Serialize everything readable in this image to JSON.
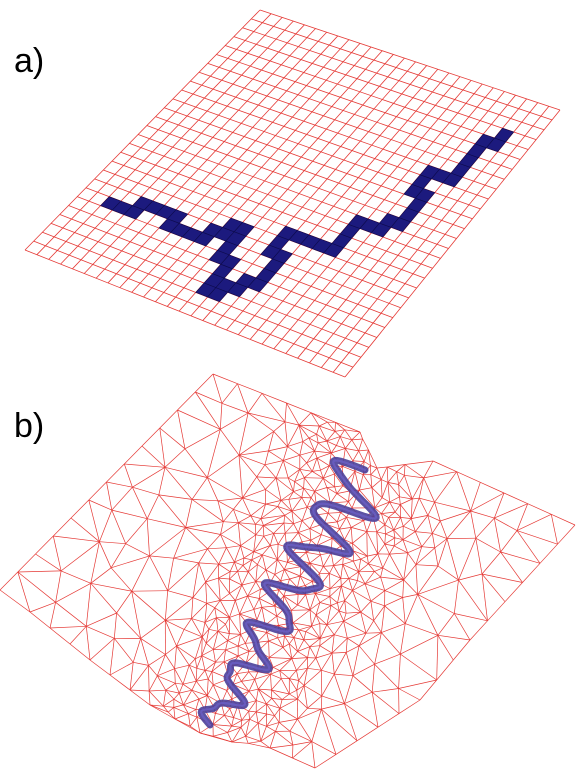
{
  "panels": [
    {
      "label": "a)",
      "kind": "structured-grid",
      "grid_columns": 27,
      "grid_rows": 27,
      "highlighted_cells": [
        [
          2,
          20
        ],
        [
          3,
          20
        ],
        [
          4,
          20
        ],
        [
          4,
          19
        ],
        [
          5,
          19
        ],
        [
          6,
          19
        ],
        [
          7,
          19
        ],
        [
          7,
          20
        ],
        [
          8,
          20
        ],
        [
          9,
          20
        ],
        [
          10,
          20
        ],
        [
          10,
          19
        ],
        [
          11,
          19
        ],
        [
          11,
          18
        ],
        [
          12,
          18
        ],
        [
          12,
          19
        ],
        [
          12,
          20
        ],
        [
          12,
          21
        ],
        [
          13,
          21
        ],
        [
          13,
          22
        ],
        [
          13,
          23
        ],
        [
          13,
          24
        ],
        [
          14,
          24
        ],
        [
          14,
          23
        ],
        [
          15,
          23
        ],
        [
          15,
          22
        ],
        [
          16,
          22
        ],
        [
          16,
          21
        ],
        [
          16,
          20
        ],
        [
          16,
          19
        ],
        [
          15,
          19
        ],
        [
          15,
          18
        ],
        [
          15,
          17
        ],
        [
          16,
          17
        ],
        [
          17,
          17
        ],
        [
          18,
          17
        ],
        [
          19,
          17
        ],
        [
          19,
          16
        ],
        [
          19,
          15
        ],
        [
          19,
          14
        ],
        [
          20,
          14
        ],
        [
          21,
          14
        ],
        [
          21,
          13
        ],
        [
          22,
          13
        ],
        [
          22,
          12
        ],
        [
          22,
          11
        ],
        [
          22,
          10
        ],
        [
          21,
          10
        ],
        [
          21,
          9
        ],
        [
          21,
          8
        ],
        [
          22,
          8
        ],
        [
          23,
          8
        ],
        [
          23,
          7
        ],
        [
          23,
          6
        ],
        [
          23,
          5
        ],
        [
          23,
          4
        ],
        [
          24,
          4
        ],
        [
          24,
          3
        ]
      ]
    },
    {
      "label": "b)",
      "kind": "unstructured-triangular-mesh",
      "feature": "meandering-channel"
    }
  ],
  "colors": {
    "mesh_line": "#e53935",
    "highlight_fill": "#1c1a7e",
    "highlight_edge": "#0d0b4d",
    "channel_line": "#4a3f99",
    "label_text": "#000000"
  }
}
